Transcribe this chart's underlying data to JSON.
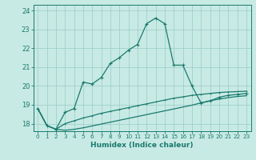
{
  "xlabel": "Humidex (Indice chaleur)",
  "ylabel": "",
  "bg_color": "#c8eae4",
  "grid_color": "#a0d0cc",
  "line_color": "#1a7a6e",
  "xlim": [
    -0.5,
    23.5
  ],
  "ylim": [
    17.6,
    24.3
  ],
  "yticks": [
    18,
    19,
    20,
    21,
    22,
    23,
    24
  ],
  "xticks": [
    0,
    1,
    2,
    3,
    4,
    5,
    6,
    7,
    8,
    9,
    10,
    11,
    12,
    13,
    14,
    15,
    16,
    17,
    18,
    19,
    20,
    21,
    22,
    23
  ],
  "series1_x": [
    0,
    1,
    2,
    3,
    4,
    5,
    6,
    7,
    8,
    9,
    10,
    11,
    12,
    13,
    14,
    15,
    16,
    17,
    18,
    19,
    20,
    21,
    22,
    23
  ],
  "series1_y": [
    18.8,
    17.9,
    17.7,
    18.6,
    18.8,
    20.2,
    20.1,
    20.45,
    21.2,
    21.5,
    21.9,
    22.2,
    23.3,
    23.6,
    23.3,
    21.1,
    21.1,
    20.0,
    19.1,
    19.2,
    19.4,
    19.5,
    19.55,
    19.6
  ],
  "series2_x": [
    0,
    1,
    2,
    3,
    4,
    5,
    6,
    7,
    8,
    9,
    10,
    11,
    12,
    13,
    14,
    15,
    16,
    17,
    18,
    19,
    20,
    21,
    22,
    23
  ],
  "series2_y": [
    18.8,
    17.9,
    17.7,
    18.0,
    18.15,
    18.3,
    18.42,
    18.55,
    18.65,
    18.75,
    18.85,
    18.95,
    19.05,
    19.15,
    19.25,
    19.35,
    19.42,
    19.5,
    19.55,
    19.6,
    19.65,
    19.68,
    19.7,
    19.72
  ],
  "series3_x": [
    0,
    1,
    2,
    3,
    4,
    5,
    6,
    7,
    8,
    9,
    10,
    11,
    12,
    13,
    14,
    15,
    16,
    17,
    18,
    19,
    20,
    21,
    22,
    23
  ],
  "series3_y": [
    18.8,
    17.9,
    17.7,
    17.65,
    17.7,
    17.78,
    17.88,
    17.98,
    18.08,
    18.18,
    18.28,
    18.38,
    18.48,
    18.58,
    18.68,
    18.78,
    18.88,
    18.98,
    19.1,
    19.22,
    19.3,
    19.38,
    19.44,
    19.48
  ]
}
